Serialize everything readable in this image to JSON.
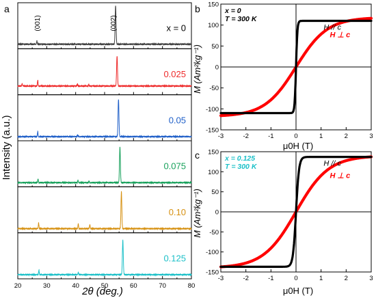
{
  "chart_data": [
    {
      "panel": "a",
      "type": "line",
      "xlabel": "2θ (deg.)",
      "ylabel": "Intensity (a.u.)",
      "xlim": [
        20,
        80
      ],
      "xticks": [
        20,
        30,
        40,
        50,
        60,
        70,
        80
      ],
      "peak_labels": [
        "(001)",
        "(002)"
      ],
      "series": [
        {
          "name": "x = 0",
          "label": "x = 0",
          "color": "#3a3a3a",
          "baseline": 0.06,
          "peaks": [
            [
              26.6,
              0.08
            ],
            [
              53.8,
              0.92
            ]
          ]
        },
        {
          "name": "0.025",
          "label": "0.025",
          "color": "#ee2a2a",
          "baseline": 0.16,
          "peaks": [
            [
              21.5,
              0.06
            ],
            [
              26.9,
              0.14
            ],
            [
              40.6,
              0.05
            ],
            [
              44.5,
              0.04
            ],
            [
              54.3,
              0.72
            ]
          ]
        },
        {
          "name": "0.05",
          "label": "0.05",
          "color": "#1f5fc8",
          "baseline": 0.05,
          "peaks": [
            [
              26.9,
              0.12
            ],
            [
              40.7,
              0.04
            ],
            [
              54.8,
              0.9
            ]
          ]
        },
        {
          "name": "0.075",
          "label": "0.075",
          "color": "#16a05a",
          "baseline": 0.05,
          "peaks": [
            [
              27.0,
              0.09
            ],
            [
              40.8,
              0.06
            ],
            [
              44.6,
              0.04
            ],
            [
              55.3,
              0.85
            ]
          ]
        },
        {
          "name": "0.10",
          "label": "0.10",
          "color": "#d69010",
          "baseline": 0.05,
          "peaks": [
            [
              27.2,
              0.14
            ],
            [
              40.9,
              0.12
            ],
            [
              44.9,
              0.1
            ],
            [
              55.8,
              0.88
            ]
          ]
        },
        {
          "name": "0.125",
          "label": "0.125",
          "color": "#1cc0c8",
          "baseline": 0.05,
          "peaks": [
            [
              27.3,
              0.11
            ],
            [
              40.9,
              0.05
            ],
            [
              56.3,
              0.83
            ]
          ]
        }
      ]
    },
    {
      "panel": "b",
      "type": "line",
      "annotation": [
        "x = 0",
        "T = 300 K"
      ],
      "xlabel": "μ0H (T)",
      "ylabel": "M (Am²kg⁻¹)",
      "xlim": [
        -3,
        3
      ],
      "ylim": [
        -150,
        150
      ],
      "xticks": [
        -3,
        -2,
        -1,
        0,
        1,
        2,
        3
      ],
      "yticks": [
        -150,
        -100,
        -50,
        0,
        50,
        100,
        150
      ],
      "series": [
        {
          "name": "H // c",
          "color": "#000000",
          "ms": 110,
          "width": 0.055
        },
        {
          "name": "H ⊥ c",
          "color": "#ff0000",
          "ms": 118,
          "width": 1.25
        }
      ]
    },
    {
      "panel": "c",
      "type": "line",
      "annotation": [
        "x = 0.125",
        "T = 300 K"
      ],
      "xlabel": "μ0H (T)",
      "ylabel": "M (Am²kg⁻¹)",
      "xlim": [
        -3,
        3
      ],
      "ylim": [
        -150,
        150
      ],
      "xticks": [
        -3,
        -2,
        -1,
        0,
        1,
        2,
        3
      ],
      "yticks": [
        -150,
        -100,
        -50,
        0,
        50,
        100,
        150
      ],
      "series": [
        {
          "name": "H // c",
          "color": "#000000",
          "ms": 137,
          "width": 0.12
        },
        {
          "name": "H ⊥ c",
          "color": "#ff0000",
          "ms": 140,
          "width": 1.3
        }
      ]
    }
  ],
  "panel_letters": {
    "a": "a",
    "b": "b",
    "c": "c"
  },
  "colors": {
    "annotation_b": "#000000",
    "annotation_c": "#1cc0c8"
  }
}
